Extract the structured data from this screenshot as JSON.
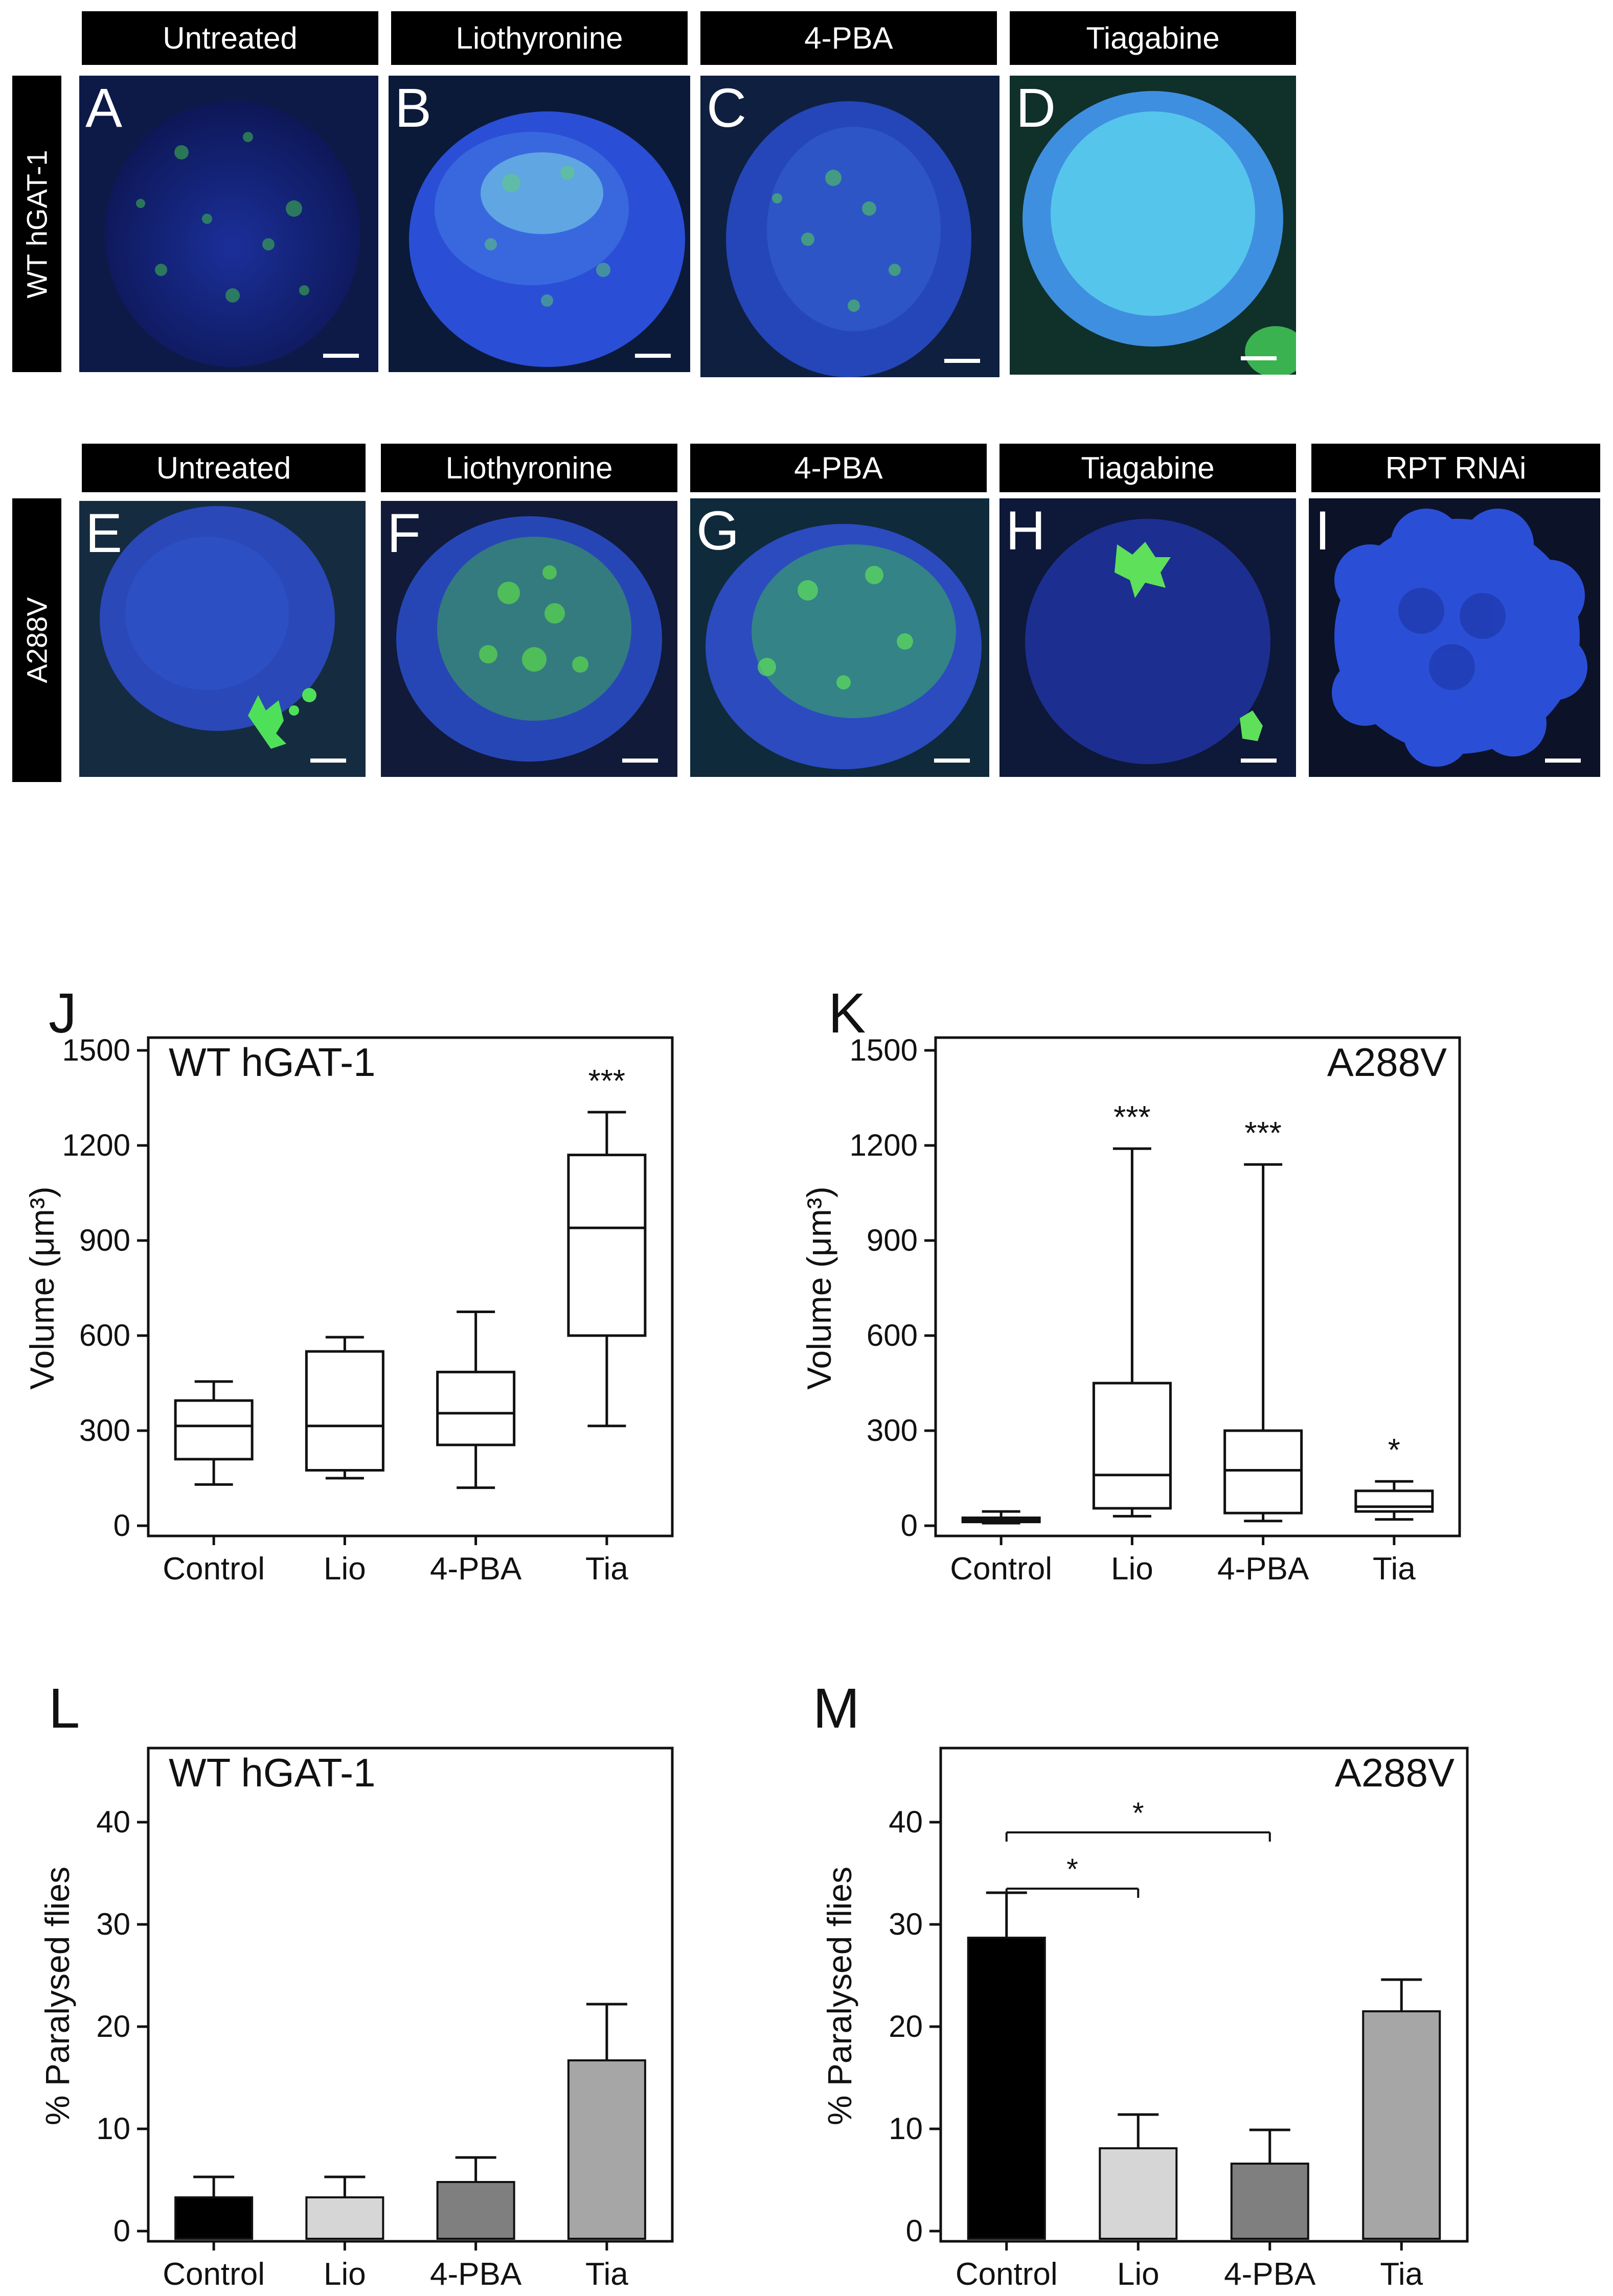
{
  "row_labels": {
    "wt": "WT hGAT-1",
    "mutant": "A288V"
  },
  "row1": [
    {
      "heading": "Untreated",
      "letter": "A",
      "look": "dim"
    },
    {
      "heading": "Liothyronine",
      "letter": "B",
      "look": "bright"
    },
    {
      "heading": "4-PBA",
      "letter": "C",
      "look": "mixed"
    },
    {
      "heading": "Tiagabine",
      "letter": "D",
      "look": "cyan"
    }
  ],
  "row2": [
    {
      "heading": "Untreated",
      "letter": "E",
      "look": "dark"
    },
    {
      "heading": "Liothyronine",
      "letter": "F",
      "look": "green"
    },
    {
      "heading": "4-PBA",
      "letter": "G",
      "look": "green"
    },
    {
      "heading": "Tiagabine",
      "letter": "H",
      "look": "dark"
    },
    {
      "heading": "RPT RNAi",
      "letter": "I",
      "look": "bluelobes"
    }
  ],
  "colors": {
    "blue": "#2a4fd6",
    "green": "#3fd34a",
    "cyan": "#5fd7f0",
    "bar_control": "#000000",
    "bar_lio": "#d6d6d6",
    "bar_pba": "#7f7f7f",
    "bar_tia": "#a6a6a6"
  },
  "chart_data": [
    {
      "panel": "J",
      "type": "box",
      "title": "WT hGAT-1",
      "ylabel": "Volume (μm³)",
      "ylim": [
        0,
        1500
      ],
      "yticks": [
        0,
        300,
        600,
        900,
        1200,
        1500
      ],
      "categories": [
        "Control",
        "Lio",
        "4-PBA",
        "Tia"
      ],
      "boxes": [
        {
          "min": 130,
          "q1": 210,
          "median": 315,
          "q3": 395,
          "max": 455
        },
        {
          "min": 150,
          "q1": 175,
          "median": 315,
          "q3": 550,
          "max": 595
        },
        {
          "min": 120,
          "q1": 255,
          "median": 355,
          "q3": 485,
          "max": 675
        },
        {
          "min": 315,
          "q1": 600,
          "median": 940,
          "q3": 1170,
          "max": 1305
        }
      ],
      "significance": [
        "",
        "",
        "",
        "***"
      ]
    },
    {
      "panel": "K",
      "type": "box",
      "title": "A288V",
      "ylabel": "Volume (μm³)",
      "ylim": [
        0,
        1500
      ],
      "yticks": [
        0,
        300,
        600,
        900,
        1200,
        1500
      ],
      "categories": [
        "Control",
        "Lio",
        "4-PBA",
        "Tia"
      ],
      "boxes": [
        {
          "min": 8,
          "q1": 12,
          "median": 18,
          "q3": 25,
          "max": 45
        },
        {
          "min": 30,
          "q1": 55,
          "median": 160,
          "q3": 450,
          "max": 1190
        },
        {
          "min": 15,
          "q1": 40,
          "median": 175,
          "q3": 300,
          "max": 1140
        },
        {
          "min": 20,
          "q1": 45,
          "median": 60,
          "q3": 110,
          "max": 140
        }
      ],
      "significance": [
        "",
        "***",
        "***",
        "*"
      ]
    },
    {
      "panel": "L",
      "type": "bar",
      "title": "WT hGAT-1",
      "ylabel": "% Paralysed flies",
      "ylim": [
        0,
        46
      ],
      "yticks": [
        0,
        10,
        20,
        30,
        40
      ],
      "categories": [
        "Control",
        "Lio",
        "4-PBA",
        "Tia"
      ],
      "values": [
        3.3,
        3.3,
        4.8,
        16.7
      ],
      "errors": [
        2.0,
        2.0,
        2.4,
        5.5
      ],
      "comparisons": []
    },
    {
      "panel": "M",
      "type": "bar",
      "title": "A288V",
      "ylabel": "% Paralysed flies",
      "ylim": [
        0,
        46
      ],
      "yticks": [
        0,
        10,
        20,
        30,
        40
      ],
      "categories": [
        "Control",
        "Lio",
        "4-PBA",
        "Tia"
      ],
      "values": [
        28.7,
        8.1,
        6.6,
        21.5
      ],
      "errors": [
        4.4,
        3.3,
        3.3,
        3.1
      ],
      "comparisons": [
        {
          "from": 0,
          "to": 1,
          "level": 33.5,
          "label": "*"
        },
        {
          "from": 0,
          "to": 2,
          "level": 39.0,
          "label": "*"
        }
      ]
    }
  ]
}
